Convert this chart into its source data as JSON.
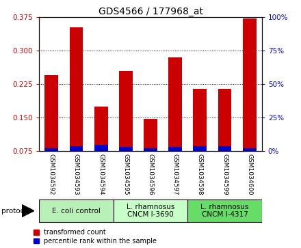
{
  "title": "GDS4566 / 177968_at",
  "samples": [
    "GSM1034592",
    "GSM1034593",
    "GSM1034594",
    "GSM1034595",
    "GSM1034596",
    "GSM1034597",
    "GSM1034598",
    "GSM1034599",
    "GSM1034600"
  ],
  "red_values": [
    0.245,
    0.352,
    0.175,
    0.255,
    0.148,
    0.285,
    0.215,
    0.215,
    0.372
  ],
  "blue_values": [
    2.5,
    4.0,
    5.0,
    3.5,
    2.5,
    3.5,
    4.0,
    4.0,
    2.5
  ],
  "ylim_left": [
    0.075,
    0.375
  ],
  "ylim_right": [
    0,
    100
  ],
  "yticks_left": [
    0.075,
    0.15,
    0.225,
    0.3,
    0.375
  ],
  "yticks_right": [
    0,
    25,
    50,
    75,
    100
  ],
  "protocols": [
    {
      "label": "E. coli control",
      "start": 0,
      "end": 3,
      "color": "#b8f0b8"
    },
    {
      "label": "L. rhamnosus\nCNCM I-3690",
      "start": 3,
      "end": 6,
      "color": "#c8ffc8"
    },
    {
      "label": "L. rhamnosus\nCNCM I-4317",
      "start": 6,
      "end": 9,
      "color": "#66dd66"
    }
  ],
  "protocol_label": "protocol",
  "legend_red": "transformed count",
  "legend_blue": "percentile rank within the sample",
  "bar_width": 0.55,
  "red_color": "#cc0000",
  "blue_color": "#0000cc",
  "left_tick_color": "#cc0000",
  "right_tick_color": "#0000cc",
  "sample_bg_color": "#d0d0d0",
  "plot_bg_color": "#ffffff",
  "title_fontsize": 10,
  "tick_fontsize": 7.5,
  "sample_fontsize": 6.5,
  "proto_fontsize": 7.5,
  "legend_fontsize": 7
}
